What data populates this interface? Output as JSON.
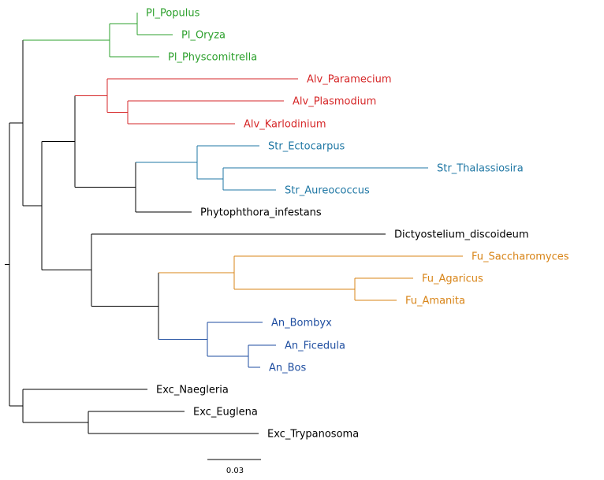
{
  "colors": {
    "plants": "#2ca02c",
    "alveolates": "#d62728",
    "stramenopiles": "#1f77a4",
    "fungi": "#d88417",
    "animals": "#1f4ea0",
    "default": "#000000"
  },
  "leaves": [
    {
      "id": "populus",
      "label": "Pl_Populus",
      "color": "plants"
    },
    {
      "id": "oryza",
      "label": "Pl_Oryza",
      "color": "plants"
    },
    {
      "id": "physcomitrella",
      "label": "Pl_Physcomitrella",
      "color": "plants"
    },
    {
      "id": "paramecium",
      "label": "Alv_Paramecium",
      "color": "alveolates"
    },
    {
      "id": "plasmodium",
      "label": "Alv_Plasmodium",
      "color": "alveolates"
    },
    {
      "id": "karlodinium",
      "label": "Alv_Karlodinium",
      "color": "alveolates"
    },
    {
      "id": "ectocarpus",
      "label": "Str_Ectocarpus",
      "color": "stramenopiles"
    },
    {
      "id": "thalassiosira",
      "label": "Str_Thalassiosira",
      "color": "stramenopiles"
    },
    {
      "id": "aureococcus",
      "label": "Str_Aureococcus",
      "color": "stramenopiles"
    },
    {
      "id": "phytophthora",
      "label": "Phytophthora_infestans",
      "color": "default"
    },
    {
      "id": "dictyostelium",
      "label": "Dictyostelium_discoideum",
      "color": "default"
    },
    {
      "id": "saccharomyces",
      "label": "Fu_Saccharomyces",
      "color": "fungi"
    },
    {
      "id": "agaricus",
      "label": "Fu_Agaricus",
      "color": "fungi"
    },
    {
      "id": "amanita",
      "label": "Fu_Amanita",
      "color": "fungi"
    },
    {
      "id": "bombyx",
      "label": "An_Bombyx",
      "color": "animals"
    },
    {
      "id": "ficedula",
      "label": "An_Ficedula",
      "color": "animals"
    },
    {
      "id": "bos",
      "label": "An_Bos",
      "color": "animals"
    },
    {
      "id": "naegleria",
      "label": "Exc_Naegleria",
      "color": "default"
    },
    {
      "id": "euglena",
      "label": "Exc_Euglena",
      "color": "default"
    },
    {
      "id": "trypanosoma",
      "label": "Exc_Trypanosoma",
      "color": "default"
    }
  ],
  "scale_bar": {
    "label": "0.03"
  }
}
